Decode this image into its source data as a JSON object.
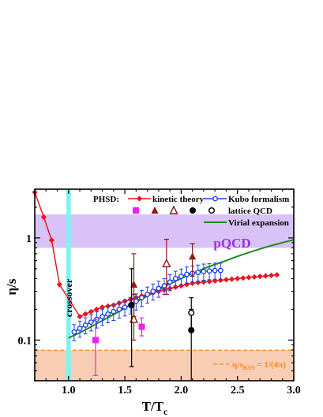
{
  "chart_data": {
    "type": "scatter",
    "xlabel": "T/T",
    "xlabel_sub": "c",
    "ylabel": "η/s",
    "x_scale": "linear",
    "y_scale": "log",
    "xlim": [
      0.7,
      3.0
    ],
    "ylim": [
      0.04,
      3.0
    ],
    "x_ticks": [
      1.0,
      1.5,
      2.0,
      2.5,
      3.0
    ],
    "x_tick_labels": [
      "1.0",
      "1.5",
      "2.0",
      "2.5",
      "3.0"
    ],
    "y_ticks": [
      0.1,
      1
    ],
    "y_tick_labels": [
      "0.1",
      "1"
    ],
    "grid": false,
    "legend_position": "top-right",
    "legend_prefix": "PHSD:",
    "legend_lattice_label": "lattice QCD",
    "bands": {
      "crossover": {
        "label": "crossover",
        "x_range": [
          0.98,
          1.02
        ],
        "color": "#7ff2f2"
      },
      "pqcd": {
        "label": "pQCD",
        "y_range": [
          0.8,
          1.7
        ],
        "color": "#d8c2f7",
        "label_color": "#9b30e0"
      },
      "kss": {
        "label": "η/s",
        "sub": "KSS",
        "suffix": " = 1/(4π)",
        "y_value": 0.0796,
        "color": "#f9cdb4",
        "line_color": "#f08a1c"
      }
    },
    "series": [
      {
        "name": "kinetic theory",
        "kind": "line-markers",
        "color": "#e8171d",
        "marker": "diamond",
        "x": [
          0.7,
          0.78,
          0.85,
          0.92,
          1.1,
          1.15,
          1.2,
          1.25,
          1.3,
          1.35,
          1.4,
          1.45,
          1.5,
          1.55,
          1.6,
          1.65,
          1.7,
          1.75,
          1.8,
          1.85,
          1.9,
          1.95,
          2.0,
          2.05,
          2.1,
          2.15,
          2.2,
          2.25,
          2.3,
          2.35,
          2.4,
          2.45,
          2.5,
          2.55,
          2.6,
          2.65,
          2.7,
          2.75,
          2.8,
          2.85
        ],
        "y": [
          2.8,
          1.6,
          0.95,
          0.35,
          0.17,
          0.18,
          0.19,
          0.2,
          0.21,
          0.215,
          0.22,
          0.23,
          0.24,
          0.25,
          0.26,
          0.27,
          0.28,
          0.29,
          0.3,
          0.31,
          0.32,
          0.33,
          0.34,
          0.35,
          0.36,
          0.365,
          0.37,
          0.375,
          0.38,
          0.385,
          0.39,
          0.395,
          0.4,
          0.405,
          0.41,
          0.415,
          0.42,
          0.425,
          0.43,
          0.435
        ]
      },
      {
        "name": "Kubo formalism",
        "kind": "line-markers-errorbars",
        "color": "#1a3ff0",
        "marker": "open-circle",
        "x": [
          1.05,
          1.1,
          1.15,
          1.2,
          1.25,
          1.3,
          1.35,
          1.4,
          1.45,
          1.5,
          1.55,
          1.6,
          1.65,
          1.7,
          1.75,
          1.8,
          1.85,
          1.9,
          1.95,
          2.0,
          2.05,
          2.1,
          2.15,
          2.2,
          2.25,
          2.3,
          2.35
        ],
        "y": [
          0.12,
          0.13,
          0.14,
          0.15,
          0.16,
          0.17,
          0.18,
          0.19,
          0.2,
          0.21,
          0.22,
          0.24,
          0.26,
          0.28,
          0.3,
          0.32,
          0.34,
          0.37,
          0.4,
          0.42,
          0.44,
          0.45,
          0.46,
          0.47,
          0.475,
          0.48,
          0.48
        ],
        "rel_error": 0.18
      },
      {
        "name": "Virial expansion",
        "kind": "line",
        "color": "#1f8a1f",
        "x": [
          1.0,
          1.1,
          1.2,
          1.3,
          1.4,
          1.5,
          1.6,
          1.7,
          1.8,
          1.9,
          2.0,
          2.1,
          2.2,
          2.3,
          2.4,
          2.5,
          2.6,
          2.7,
          2.8,
          2.9,
          3.0
        ],
        "y": [
          0.105,
          0.118,
          0.135,
          0.155,
          0.178,
          0.205,
          0.235,
          0.27,
          0.31,
          0.355,
          0.4,
          0.45,
          0.5,
          0.55,
          0.6,
          0.66,
          0.72,
          0.78,
          0.84,
          0.9,
          0.96
        ]
      },
      {
        "kind": "points-errorbars",
        "color": "#ee22ee",
        "marker": "filled-square",
        "legend_group": "lattice QCD",
        "points": [
          {
            "x": 1.24,
            "y": 0.1,
            "lo": 0.045,
            "hi": 0.16
          },
          {
            "x": 1.65,
            "y": 0.135,
            "lo": 0.11,
            "hi": 0.165
          }
        ]
      },
      {
        "kind": "points-errorbars",
        "color": "#8b1a1a",
        "marker": "filled-triangle",
        "legend_group": "lattice QCD",
        "points": [
          {
            "x": 1.58,
            "y": 0.35,
            "lo": 0.17,
            "hi": 0.7
          },
          {
            "x": 2.1,
            "y": 0.66,
            "lo": 0.42,
            "hi": 0.88
          }
        ]
      },
      {
        "kind": "points-errorbars",
        "color": "#8b1a1a",
        "marker": "open-triangle",
        "legend_group": "lattice QCD",
        "points": [
          {
            "x": 1.58,
            "y": 0.16,
            "lo": 0.1,
            "hi": 0.28
          },
          {
            "x": 1.87,
            "y": 0.56,
            "lo": 0.28,
            "hi": 0.97
          }
        ]
      },
      {
        "kind": "points-errorbars",
        "color": "#000000",
        "marker": "filled-circle",
        "legend_group": "lattice QCD",
        "points": [
          {
            "x": 1.56,
            "y": 0.22,
            "lo": 0.055,
            "hi": 0.5
          },
          {
            "x": 2.09,
            "y": 0.125,
            "lo": 0.04,
            "hi": 0.2
          }
        ]
      },
      {
        "kind": "points-errorbars",
        "color": "#000000",
        "marker": "open-circle",
        "legend_group": "lattice QCD",
        "points": [
          {
            "x": 2.09,
            "y": 0.185,
            "lo": 0.13,
            "hi": 0.26
          }
        ]
      }
    ]
  }
}
